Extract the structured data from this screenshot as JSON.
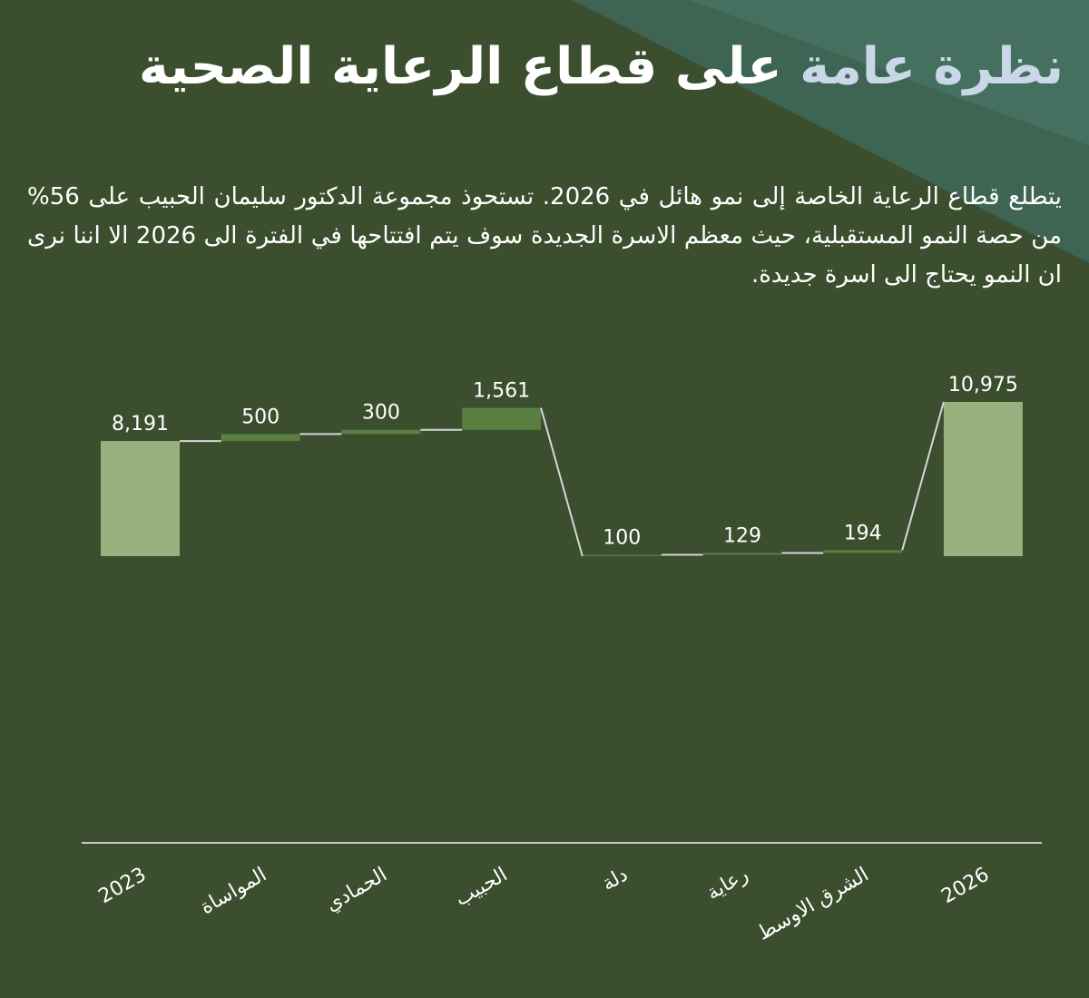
{
  "title": {
    "highlight": "نظرة عامة",
    "connector": "على",
    "rest": "قطاع الرعاية الصحية"
  },
  "description": "يتطلع قطاع الرعاية الخاصة إلى نمو هائل في 2026. تستحوذ مجموعة الدكتور سليمان الحبيب على 56% من حصة النمو المستقبلية، حيث معظم الاسرة الجديدة سوف يتم افتتاحها في الفترة الى 2026 الا اننا نرى ان النمو يحتاج الى اسرة جديدة.",
  "colors": {
    "background": "#3b4e2e",
    "decor": "#3f6a5b",
    "total_bar": "#97b17f",
    "increment_bar": "#597e41",
    "connector": "#d6d6d6",
    "axis": "#c8c8c8",
    "text": "#ffffff"
  },
  "chart_data": {
    "type": "waterfall",
    "categories": [
      "2023",
      "المواساة",
      "الحمادي",
      "الحبيب",
      "دلة",
      "رعاية",
      "الشرق الاوسط",
      "2026"
    ],
    "values": [
      8191,
      500,
      300,
      1561,
      100,
      129,
      194,
      10975
    ],
    "value_labels": [
      "8,191",
      "500",
      "300",
      "1,561",
      "100",
      "129",
      "194",
      "10,975"
    ],
    "kinds": [
      "total",
      "increment",
      "increment",
      "increment",
      "increment",
      "increment",
      "increment",
      "total"
    ],
    "title": "",
    "xlabel": "",
    "ylabel": "",
    "grid": false,
    "legend": "none"
  }
}
